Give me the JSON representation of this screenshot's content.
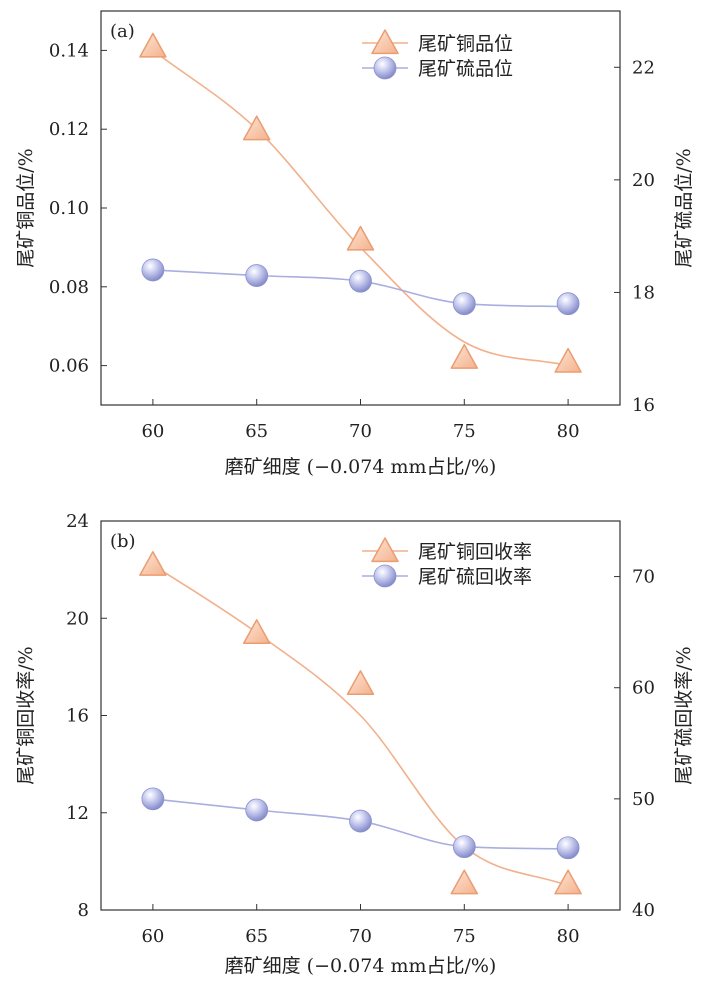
{
  "chart_data": [
    {
      "type": "line",
      "panel_label": "(a)",
      "categories": [
        "60",
        "65",
        "70",
        "75",
        "80"
      ],
      "x": [
        60,
        65,
        70,
        75,
        80
      ],
      "xlabel": "磨矿细度 (−0.074 mm占比/%)",
      "ylabel_left": "尾矿铜品位/%",
      "ylabel_right": "尾矿硫品位/%",
      "ylim_left": [
        0.05,
        0.15
      ],
      "ylim_right": [
        16,
        23
      ],
      "yticks_left": [
        "0.06",
        "0.08",
        "0.10",
        "0.12",
        "0.14"
      ],
      "yticks_left_values": [
        0.06,
        0.08,
        0.1,
        0.12,
        0.14
      ],
      "yticks_right": [
        "16",
        "18",
        "20",
        "22"
      ],
      "yticks_right_values": [
        16,
        18,
        20,
        22
      ],
      "legend_position": "top-right",
      "series": [
        {
          "name": "尾矿铜品位",
          "axis": "left",
          "marker": "triangle",
          "color": "#f2b08c",
          "values": [
            0.141,
            0.12,
            0.092,
            0.062,
            0.061
          ],
          "fit": [
            0.14,
            0.12,
            0.09,
            0.066,
            0.06
          ]
        },
        {
          "name": "尾矿硫品位",
          "axis": "right",
          "marker": "sphere",
          "color": "#a9aee0",
          "values": [
            18.4,
            18.3,
            18.2,
            17.8,
            17.8
          ],
          "fit": [
            18.4,
            18.3,
            18.2,
            17.8,
            17.75
          ]
        }
      ]
    },
    {
      "type": "line",
      "panel_label": "(b)",
      "categories": [
        "60",
        "65",
        "70",
        "75",
        "80"
      ],
      "x": [
        60,
        65,
        70,
        75,
        80
      ],
      "xlabel": "磨矿细度 (−0.074 mm占比/%)",
      "ylabel_left": "尾矿铜回收率/%",
      "ylabel_right": "尾矿硫回收率/%",
      "ylim_left": [
        8,
        24
      ],
      "ylim_right": [
        40,
        75
      ],
      "yticks_left": [
        "8",
        "12",
        "16",
        "20",
        "24"
      ],
      "yticks_left_values": [
        8,
        12,
        16,
        20,
        24
      ],
      "yticks_right": [
        "40",
        "50",
        "60",
        "70"
      ],
      "yticks_right_values": [
        40,
        50,
        60,
        70
      ],
      "legend_position": "top-right",
      "series": [
        {
          "name": "尾矿铜回收率",
          "axis": "left",
          "marker": "triangle",
          "color": "#f2b08c",
          "values": [
            22.2,
            19.4,
            17.3,
            9.1,
            9.1
          ],
          "fit": [
            22.2,
            19.4,
            16.0,
            10.6,
            9.0
          ]
        },
        {
          "name": "尾矿硫回收率",
          "axis": "right",
          "marker": "sphere",
          "color": "#a9aee0",
          "values": [
            50.0,
            49.0,
            48.0,
            45.7,
            45.6
          ],
          "fit": [
            50.0,
            49.0,
            48.0,
            45.7,
            45.5
          ]
        }
      ]
    }
  ]
}
